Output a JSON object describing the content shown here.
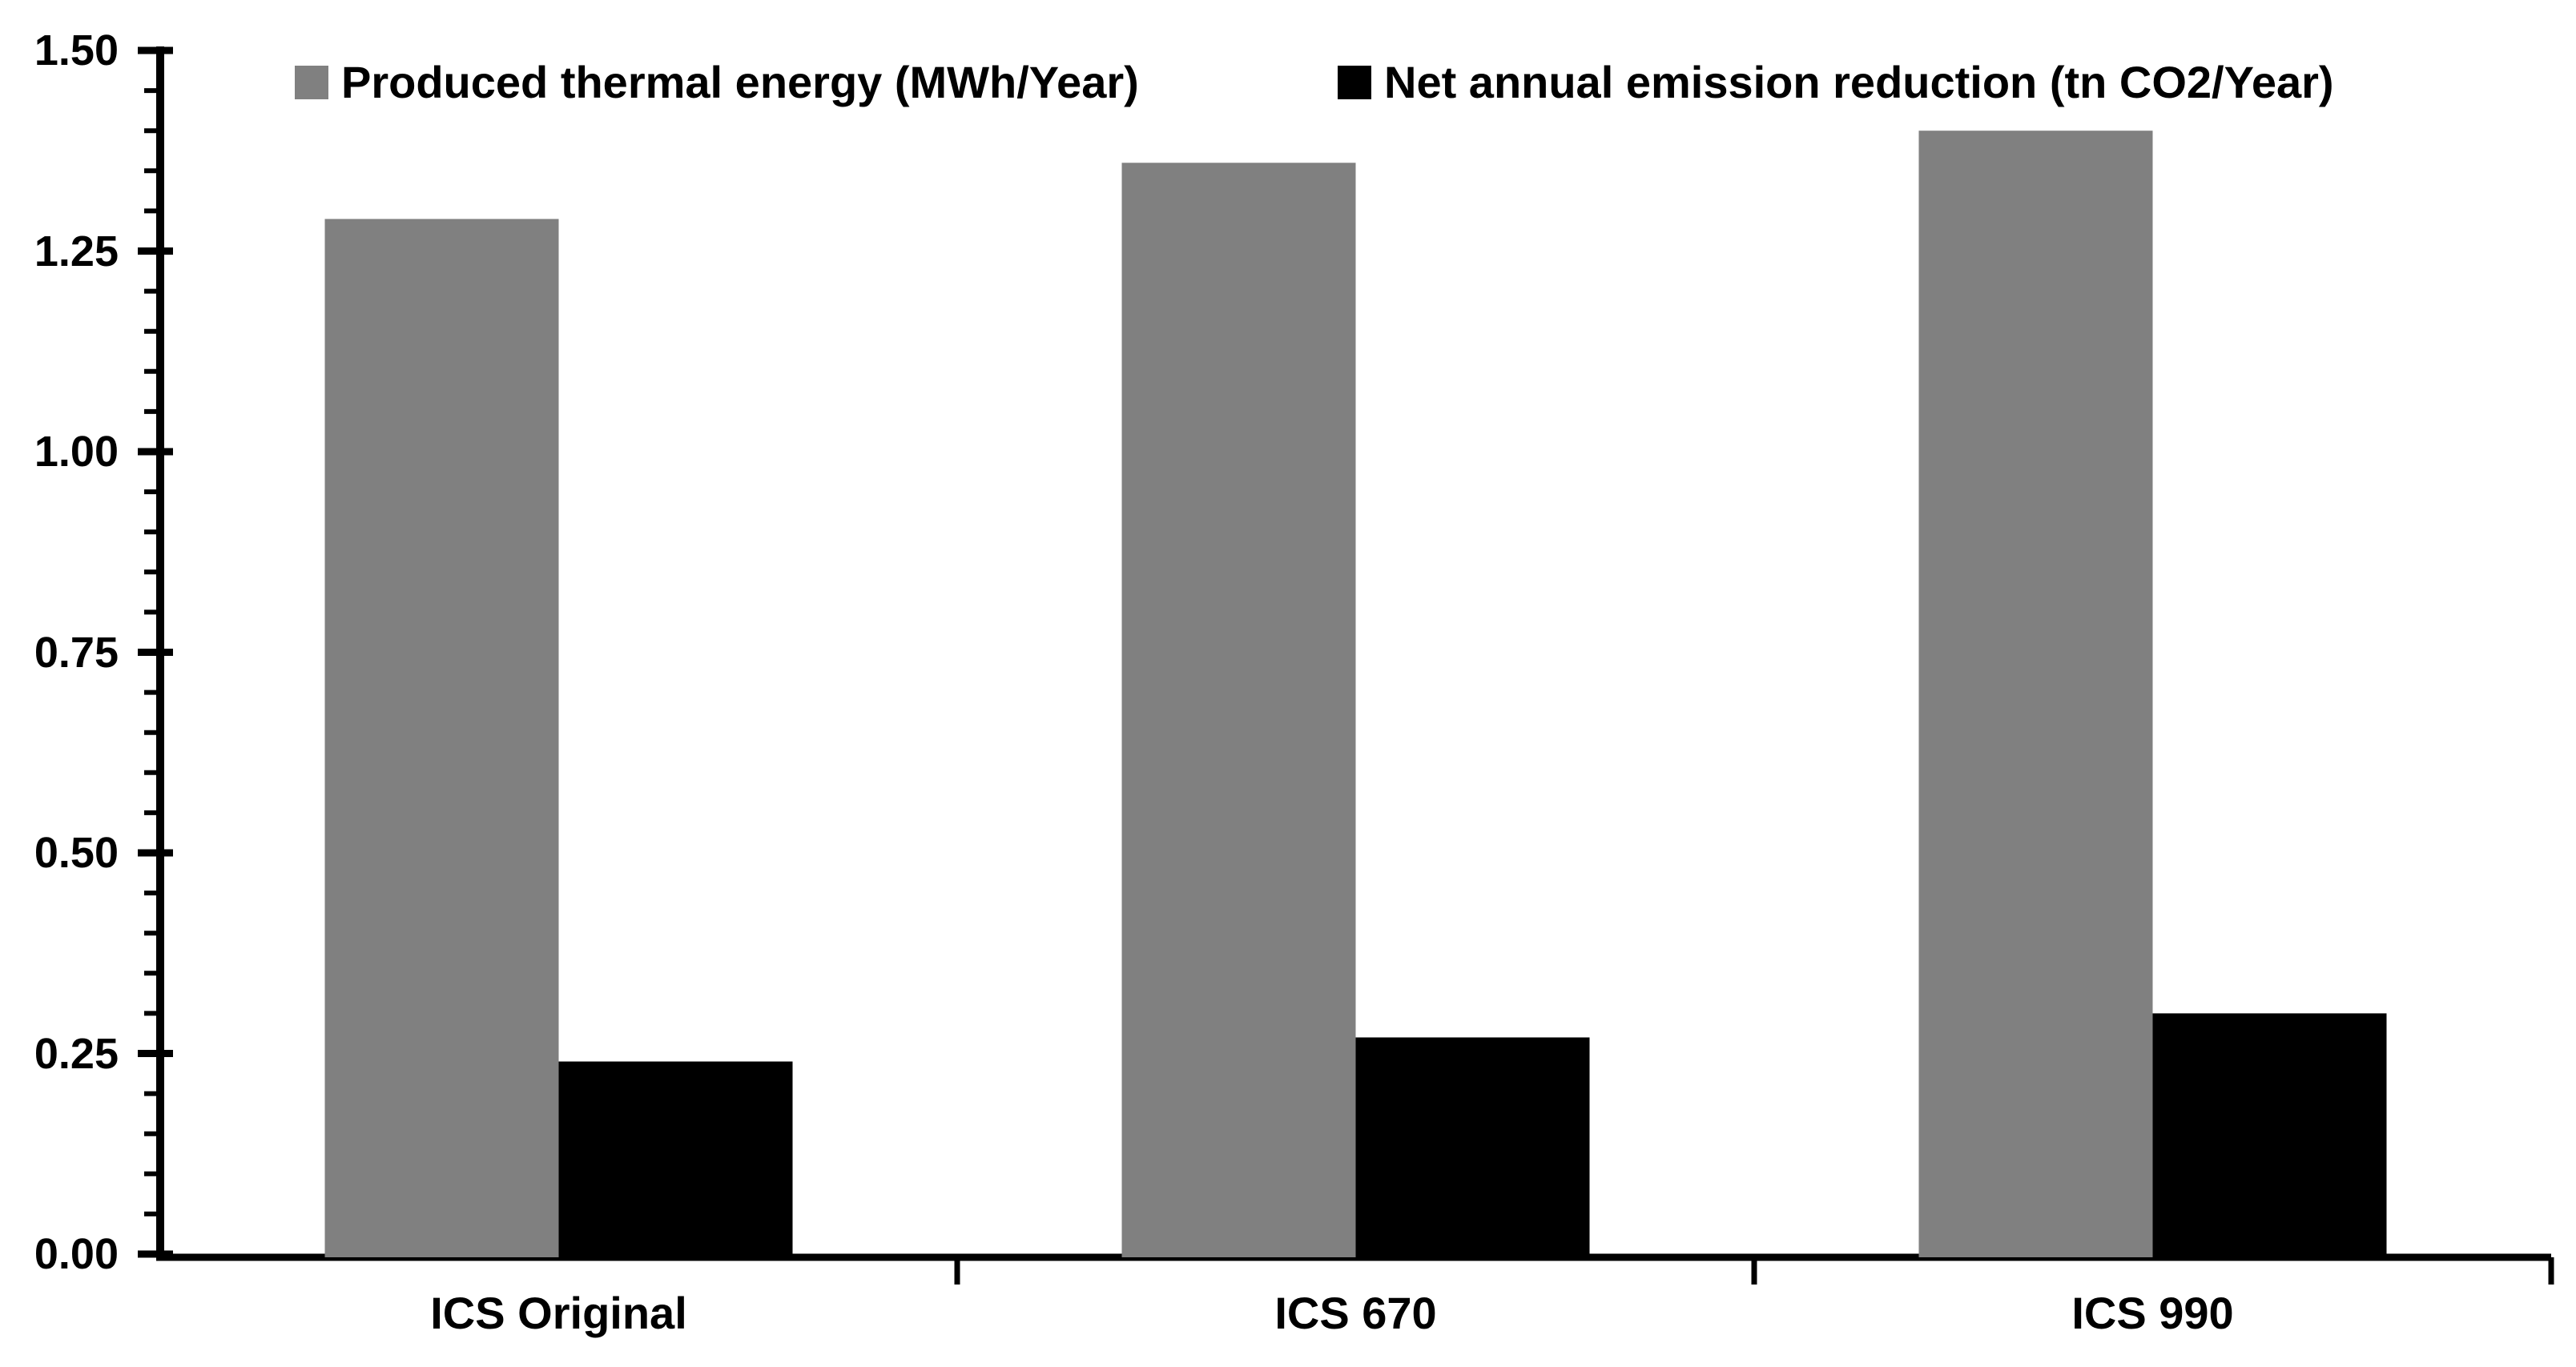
{
  "chart_data": {
    "type": "bar",
    "categories": [
      "ICS Original",
      "ICS 670",
      "ICS 990"
    ],
    "series": [
      {
        "name": "Produced thermal energy (MWh/Year)",
        "color": "#808080",
        "values": [
          1.29,
          1.36,
          1.4
        ]
      },
      {
        "name": "Net annual emission reduction (tn CO2/Year)",
        "color": "#000000",
        "values": [
          0.24,
          0.27,
          0.3
        ]
      }
    ],
    "title": "",
    "xlabel": "",
    "ylabel": "",
    "ylim": [
      0,
      1.5
    ],
    "y_major_step": 0.25,
    "y_minor_step": 0.05,
    "y_tick_labels": [
      "0.00",
      "0.25",
      "0.50",
      "0.75",
      "1.00",
      "1.25",
      "1.50"
    ],
    "grid": false,
    "legend_position": "top",
    "axis_color": "#000000",
    "background": "#ffffff"
  }
}
